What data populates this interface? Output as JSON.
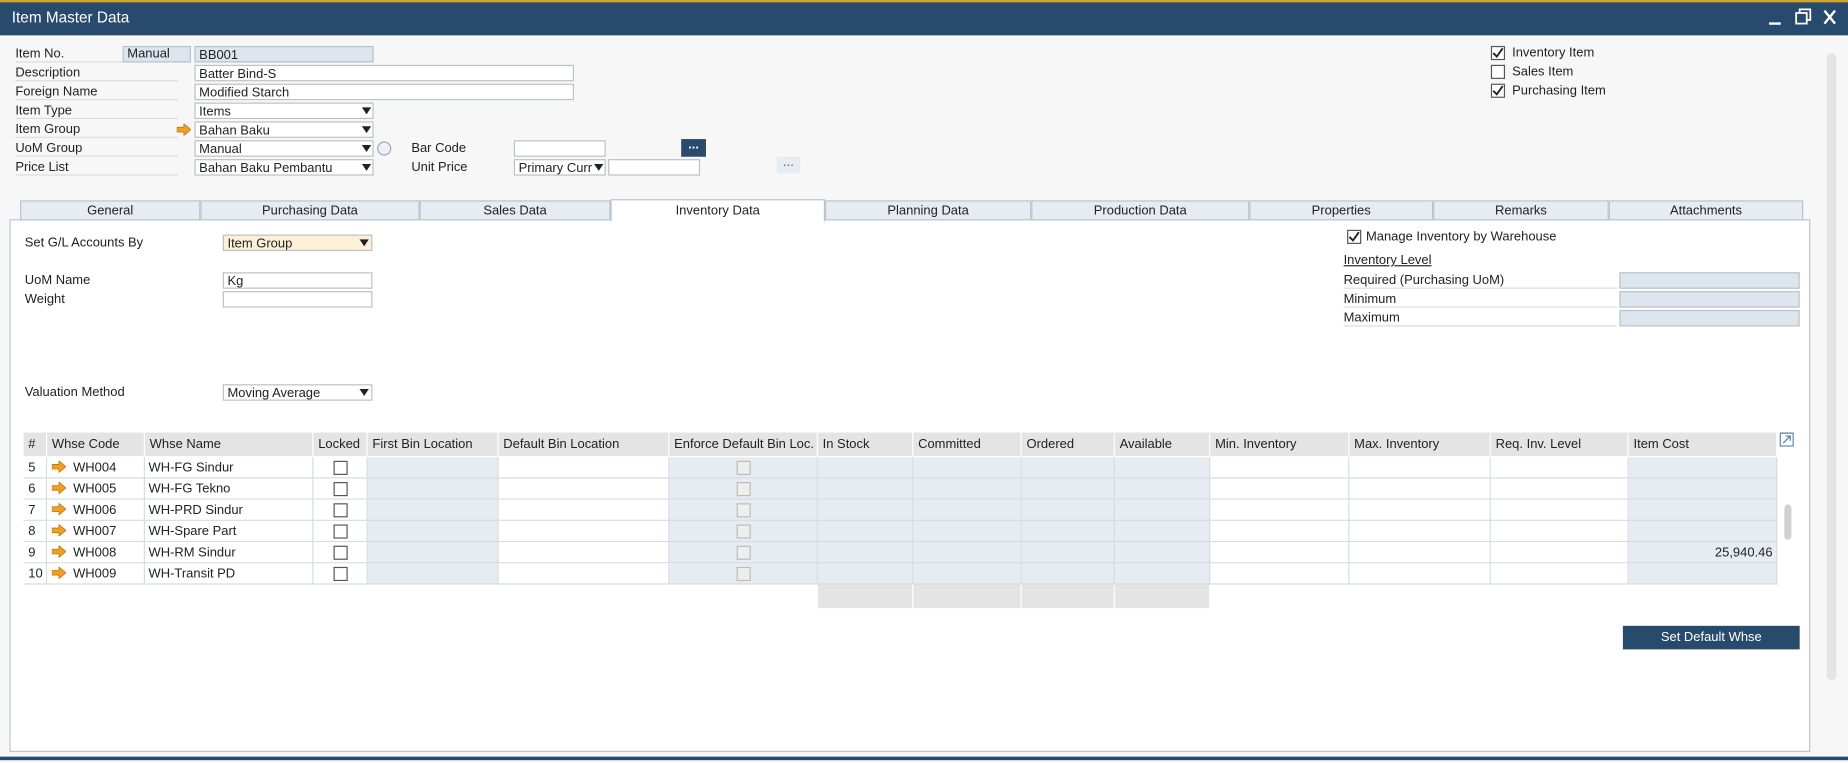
{
  "window": {
    "title": "Item Master Data"
  },
  "header": {
    "item_no": {
      "label": "Item No.",
      "series": "Manual",
      "value": "BB001"
    },
    "fields": [
      {
        "label": "Description",
        "value": "Batter Bind-S",
        "control": "input-wide"
      },
      {
        "label": "Foreign Name",
        "value": "Modified Starch",
        "control": "input-wide"
      },
      {
        "label": "Item Type",
        "value": "Items",
        "control": "dropdown"
      },
      {
        "label": "Item Group",
        "value": "Bahan Baku",
        "control": "dropdown",
        "link": true
      },
      {
        "label": "UoM Group",
        "value": "Manual",
        "control": "dropdown",
        "info": true
      },
      {
        "label": "Price List",
        "value": "Bahan Baku Pembantu",
        "control": "dropdown"
      }
    ],
    "bar_code": {
      "label": "Bar Code",
      "button": "..."
    },
    "unit_price": {
      "label": "Unit Price",
      "currency": "Primary Curr",
      "button": "..."
    },
    "checkboxes": [
      {
        "label": "Inventory Item",
        "checked": true
      },
      {
        "label": "Sales Item",
        "checked": false
      },
      {
        "label": "Purchasing Item",
        "checked": true
      }
    ]
  },
  "tabs": {
    "items": [
      "General",
      "Purchasing Data",
      "Sales Data",
      "Inventory Data",
      "Planning Data",
      "Production Data",
      "Properties",
      "Remarks",
      "Attachments"
    ],
    "active": 3
  },
  "inventory": {
    "gl_accounts": {
      "label": "Set G/L Accounts By",
      "value": "Item Group"
    },
    "uom_name": {
      "label": "UoM Name",
      "value": "Kg"
    },
    "weight": {
      "label": "Weight"
    },
    "valuation": {
      "label": "Valuation Method",
      "value": "Moving Average"
    },
    "manage_by_warehouse": {
      "label": "Manage Inventory by Warehouse",
      "checked": true
    },
    "inventory_level": {
      "title": "Inventory Level",
      "fields": [
        "Required (Purchasing UoM)",
        "Minimum",
        "Maximum"
      ]
    }
  },
  "table": {
    "columns": [
      "#",
      "Whse Code",
      "Whse Name",
      "Locked",
      "First Bin Location",
      "Default Bin Location",
      "Enforce Default Bin Loc.",
      "In Stock",
      "Committed",
      "Ordered",
      "Available",
      "Min. Inventory",
      "Max. Inventory",
      "Req. Inv. Level",
      "Item Cost"
    ],
    "rows": [
      {
        "no": 5,
        "code": "WH004",
        "name": "WH-FG Sindur"
      },
      {
        "no": 6,
        "code": "WH005",
        "name": "WH-FG Tekno"
      },
      {
        "no": 7,
        "code": "WH006",
        "name": "WH-PRD Sindur"
      },
      {
        "no": 8,
        "code": "WH007",
        "name": "WH-Spare Part"
      },
      {
        "no": 9,
        "code": "WH008",
        "name": "WH-RM Sindur",
        "item_cost": "25,940.46"
      },
      {
        "no": 10,
        "code": "WH009",
        "name": "WH-Transit PD"
      }
    ]
  },
  "buttons": {
    "set_default_whse": "Set Default Whse"
  }
}
